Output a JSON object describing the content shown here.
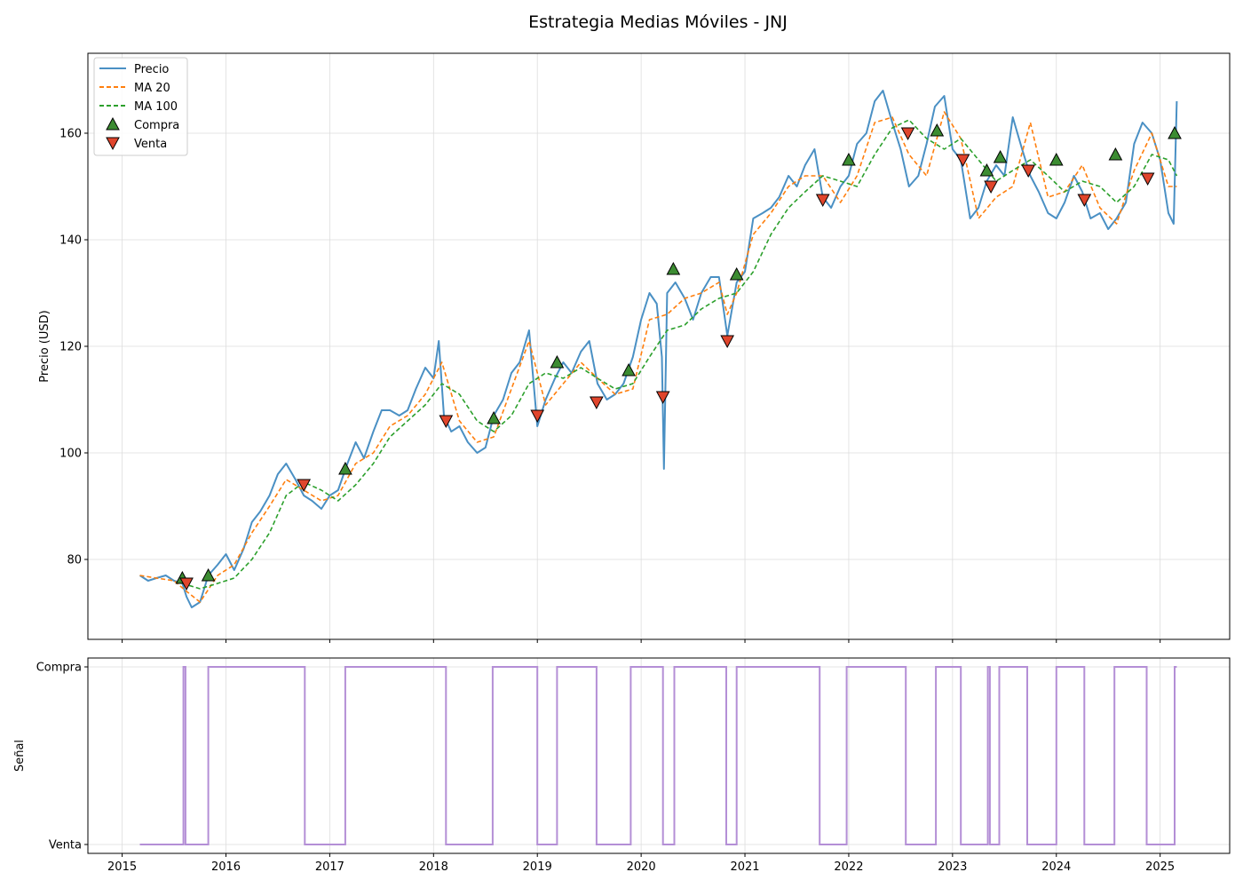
{
  "chart_data": [
    {
      "type": "line",
      "title": "Estrategia Medias Móviles - JNJ",
      "xlabel": "",
      "ylabel": "Precio (USD)",
      "xlim": [
        2014.67,
        2025.67
      ],
      "ylim": [
        65,
        175
      ],
      "x_ticks": [
        "2015",
        "2016",
        "2017",
        "2018",
        "2019",
        "2020",
        "2021",
        "2022",
        "2023",
        "2024",
        "2025"
      ],
      "y_ticks": [
        80,
        100,
        120,
        140,
        160
      ],
      "grid": true,
      "legend_position": "top-left",
      "colors": {
        "price": "#4a90c4",
        "ma20": "#ff7f0e",
        "ma100": "#2ca02c",
        "buy": "#3c8c32",
        "sell": "#e0452c"
      },
      "series": [
        {
          "name": "Precio",
          "style": "solid",
          "x": [
            2015.17,
            2015.25,
            2015.33,
            2015.42,
            2015.5,
            2015.58,
            2015.62,
            2015.67,
            2015.75,
            2015.83,
            2015.92,
            2016.0,
            2016.08,
            2016.17,
            2016.25,
            2016.33,
            2016.42,
            2016.5,
            2016.58,
            2016.67,
            2016.75,
            2016.83,
            2016.92,
            2017.0,
            2017.08,
            2017.17,
            2017.25,
            2017.33,
            2017.42,
            2017.5,
            2017.58,
            2017.67,
            2017.75,
            2017.83,
            2017.92,
            2018.0,
            2018.05,
            2018.1,
            2018.17,
            2018.25,
            2018.33,
            2018.42,
            2018.5,
            2018.58,
            2018.67,
            2018.75,
            2018.83,
            2018.92,
            2019.0,
            2019.08,
            2019.17,
            2019.25,
            2019.33,
            2019.42,
            2019.5,
            2019.58,
            2019.67,
            2019.75,
            2019.83,
            2019.92,
            2020.0,
            2020.08,
            2020.15,
            2020.2,
            2020.22,
            2020.25,
            2020.33,
            2020.42,
            2020.5,
            2020.58,
            2020.67,
            2020.75,
            2020.83,
            2020.92,
            2021.0,
            2021.08,
            2021.17,
            2021.25,
            2021.33,
            2021.42,
            2021.5,
            2021.58,
            2021.67,
            2021.75,
            2021.83,
            2021.92,
            2022.0,
            2022.08,
            2022.17,
            2022.25,
            2022.33,
            2022.42,
            2022.5,
            2022.58,
            2022.67,
            2022.75,
            2022.83,
            2022.92,
            2023.0,
            2023.08,
            2023.17,
            2023.25,
            2023.33,
            2023.42,
            2023.5,
            2023.58,
            2023.67,
            2023.75,
            2023.83,
            2023.92,
            2024.0,
            2024.08,
            2024.17,
            2024.25,
            2024.33,
            2024.42,
            2024.5,
            2024.58,
            2024.67,
            2024.75,
            2024.83,
            2024.92,
            2025.0,
            2025.08,
            2025.13,
            2025.16
          ],
          "values": [
            77,
            76,
            76.5,
            77,
            76,
            75.5,
            73,
            71,
            72,
            77,
            79,
            81,
            78,
            82,
            87,
            89,
            92,
            96,
            98,
            95,
            92,
            91,
            89.5,
            92,
            93,
            98,
            102,
            99,
            104,
            108,
            108,
            107,
            108,
            112,
            116,
            114,
            121,
            107,
            104,
            105,
            102,
            100,
            101,
            107,
            110,
            115,
            117,
            123,
            105,
            110,
            114,
            117,
            115,
            119,
            121,
            113,
            110,
            111,
            113,
            118,
            125,
            130,
            128,
            118,
            97,
            130,
            132,
            129,
            125,
            130,
            133,
            133,
            122,
            132,
            134,
            144,
            145,
            146,
            148,
            152,
            150,
            154,
            157,
            148,
            146,
            150,
            152,
            158,
            160,
            166,
            168,
            162,
            157,
            150,
            152,
            158,
            165,
            167,
            157,
            155,
            144,
            146,
            151,
            154,
            152,
            163,
            157,
            152,
            149,
            145,
            144,
            147,
            152,
            149,
            144,
            145,
            142,
            144,
            147,
            158,
            162,
            160,
            155,
            145,
            143,
            166
          ]
        },
        {
          "name": "MA 20",
          "style": "dashed",
          "x": [
            2015.17,
            2015.33,
            2015.5,
            2015.62,
            2015.75,
            2015.92,
            2016.08,
            2016.25,
            2016.42,
            2016.58,
            2016.75,
            2016.92,
            2017.08,
            2017.25,
            2017.42,
            2017.58,
            2017.75,
            2017.92,
            2018.08,
            2018.25,
            2018.42,
            2018.58,
            2018.75,
            2018.92,
            2019.08,
            2019.25,
            2019.42,
            2019.58,
            2019.75,
            2019.92,
            2020.08,
            2020.25,
            2020.42,
            2020.58,
            2020.75,
            2020.83,
            2020.92,
            2021.08,
            2021.25,
            2021.42,
            2021.58,
            2021.75,
            2021.92,
            2022.08,
            2022.25,
            2022.42,
            2022.58,
            2022.75,
            2022.92,
            2023.08,
            2023.25,
            2023.42,
            2023.58,
            2023.75,
            2023.92,
            2024.08,
            2024.25,
            2024.42,
            2024.58,
            2024.75,
            2024.92,
            2025.08,
            2025.16
          ],
          "values": [
            77,
            76.5,
            76,
            74,
            72,
            77,
            79,
            85,
            90,
            95,
            93,
            91,
            92,
            98,
            100,
            105,
            107,
            111,
            117,
            106,
            102,
            103,
            112,
            121,
            109,
            113,
            117,
            114,
            111,
            112,
            125,
            126,
            129,
            130,
            132,
            126,
            130,
            141,
            145,
            150,
            152,
            152,
            147,
            152,
            162,
            163,
            156,
            152,
            164,
            159,
            144,
            148,
            150,
            162,
            148,
            149,
            154,
            146,
            143,
            153,
            160,
            150,
            150
          ]
        },
        {
          "name": "MA 100",
          "style": "dashed",
          "x": [
            2015.58,
            2015.75,
            2015.92,
            2016.08,
            2016.25,
            2016.42,
            2016.58,
            2016.75,
            2016.92,
            2017.08,
            2017.25,
            2017.42,
            2017.58,
            2017.75,
            2017.92,
            2018.08,
            2018.25,
            2018.42,
            2018.58,
            2018.75,
            2018.92,
            2019.08,
            2019.25,
            2019.42,
            2019.58,
            2019.75,
            2019.92,
            2020.08,
            2020.25,
            2020.42,
            2020.58,
            2020.75,
            2020.92,
            2021.08,
            2021.25,
            2021.42,
            2021.58,
            2021.75,
            2021.92,
            2022.08,
            2022.25,
            2022.42,
            2022.58,
            2022.75,
            2022.92,
            2023.08,
            2023.25,
            2023.42,
            2023.58,
            2023.75,
            2023.92,
            2024.08,
            2024.25,
            2024.42,
            2024.58,
            2024.75,
            2024.92,
            2025.08,
            2025.16
          ],
          "values": [
            75.5,
            74.5,
            75.5,
            76.5,
            80,
            85,
            92,
            94.5,
            93,
            91,
            94,
            98,
            103,
            106,
            109,
            113,
            111,
            106,
            104,
            107,
            113,
            115,
            114,
            116,
            114,
            112,
            113,
            118,
            123,
            124,
            127,
            129,
            130,
            134,
            141,
            146,
            149,
            152,
            151,
            150,
            156,
            161,
            162.5,
            159,
            157,
            159,
            155,
            151,
            153,
            155,
            152,
            149,
            151,
            150,
            147,
            150,
            156,
            155,
            152
          ]
        }
      ],
      "markers": [
        {
          "name": "Compra",
          "symbol": "triangle-up",
          "points": [
            {
              "x": 2015.58,
              "y": 76.5
            },
            {
              "x": 2015.83,
              "y": 77
            },
            {
              "x": 2017.15,
              "y": 97
            },
            {
              "x": 2018.58,
              "y": 106.5
            },
            {
              "x": 2019.19,
              "y": 117
            },
            {
              "x": 2019.88,
              "y": 115.5
            },
            {
              "x": 2020.31,
              "y": 134.5
            },
            {
              "x": 2020.92,
              "y": 133.5
            },
            {
              "x": 2022.0,
              "y": 155
            },
            {
              "x": 2022.85,
              "y": 160.5
            },
            {
              "x": 2023.33,
              "y": 153
            },
            {
              "x": 2023.46,
              "y": 155.5
            },
            {
              "x": 2024.0,
              "y": 155
            },
            {
              "x": 2024.57,
              "y": 156
            },
            {
              "x": 2025.14,
              "y": 160
            }
          ]
        },
        {
          "name": "Venta",
          "symbol": "triangle-down",
          "points": [
            {
              "x": 2015.62,
              "y": 75.5
            },
            {
              "x": 2016.75,
              "y": 94
            },
            {
              "x": 2018.12,
              "y": 106
            },
            {
              "x": 2019.0,
              "y": 107
            },
            {
              "x": 2019.57,
              "y": 109.5
            },
            {
              "x": 2020.21,
              "y": 110.5
            },
            {
              "x": 2020.83,
              "y": 121
            },
            {
              "x": 2021.75,
              "y": 147.5
            },
            {
              "x": 2022.57,
              "y": 160
            },
            {
              "x": 2023.1,
              "y": 155
            },
            {
              "x": 2023.37,
              "y": 150
            },
            {
              "x": 2023.73,
              "y": 153
            },
            {
              "x": 2024.27,
              "y": 147.5
            },
            {
              "x": 2024.88,
              "y": 151.5
            }
          ]
        }
      ]
    },
    {
      "type": "line",
      "title": "",
      "xlabel": "",
      "ylabel": "Señal",
      "xlim": [
        2014.67,
        2025.67
      ],
      "y_categories": [
        "Venta",
        "Compra"
      ],
      "x_ticks": [
        "2015",
        "2016",
        "2017",
        "2018",
        "2019",
        "2020",
        "2021",
        "2022",
        "2023",
        "2024",
        "2025"
      ],
      "grid": true,
      "colors": {
        "signal": "#b48fd6"
      },
      "series": [
        {
          "name": "",
          "style": "step",
          "x_start": 2015.17,
          "x_end": 2025.16,
          "initial_state": "Venta",
          "switch_points": [
            {
              "x": 2015.59,
              "state": "Compra"
            },
            {
              "x": 2015.61,
              "state": "Venta"
            },
            {
              "x": 2015.83,
              "state": "Compra"
            },
            {
              "x": 2016.76,
              "state": "Venta"
            },
            {
              "x": 2017.15,
              "state": "Compra"
            },
            {
              "x": 2018.12,
              "state": "Venta"
            },
            {
              "x": 2018.57,
              "state": "Compra"
            },
            {
              "x": 2019.0,
              "state": "Venta"
            },
            {
              "x": 2019.19,
              "state": "Compra"
            },
            {
              "x": 2019.57,
              "state": "Venta"
            },
            {
              "x": 2019.9,
              "state": "Compra"
            },
            {
              "x": 2020.21,
              "state": "Venta"
            },
            {
              "x": 2020.32,
              "state": "Compra"
            },
            {
              "x": 2020.82,
              "state": "Venta"
            },
            {
              "x": 2020.92,
              "state": "Compra"
            },
            {
              "x": 2021.72,
              "state": "Venta"
            },
            {
              "x": 2021.98,
              "state": "Compra"
            },
            {
              "x": 2022.55,
              "state": "Venta"
            },
            {
              "x": 2022.84,
              "state": "Compra"
            },
            {
              "x": 2023.08,
              "state": "Venta"
            },
            {
              "x": 2023.34,
              "state": "Compra"
            },
            {
              "x": 2023.36,
              "state": "Venta"
            },
            {
              "x": 2023.45,
              "state": "Compra"
            },
            {
              "x": 2023.72,
              "state": "Venta"
            },
            {
              "x": 2024.0,
              "state": "Compra"
            },
            {
              "x": 2024.27,
              "state": "Venta"
            },
            {
              "x": 2024.56,
              "state": "Compra"
            },
            {
              "x": 2024.87,
              "state": "Venta"
            },
            {
              "x": 2025.14,
              "state": "Compra"
            }
          ]
        }
      ]
    }
  ]
}
